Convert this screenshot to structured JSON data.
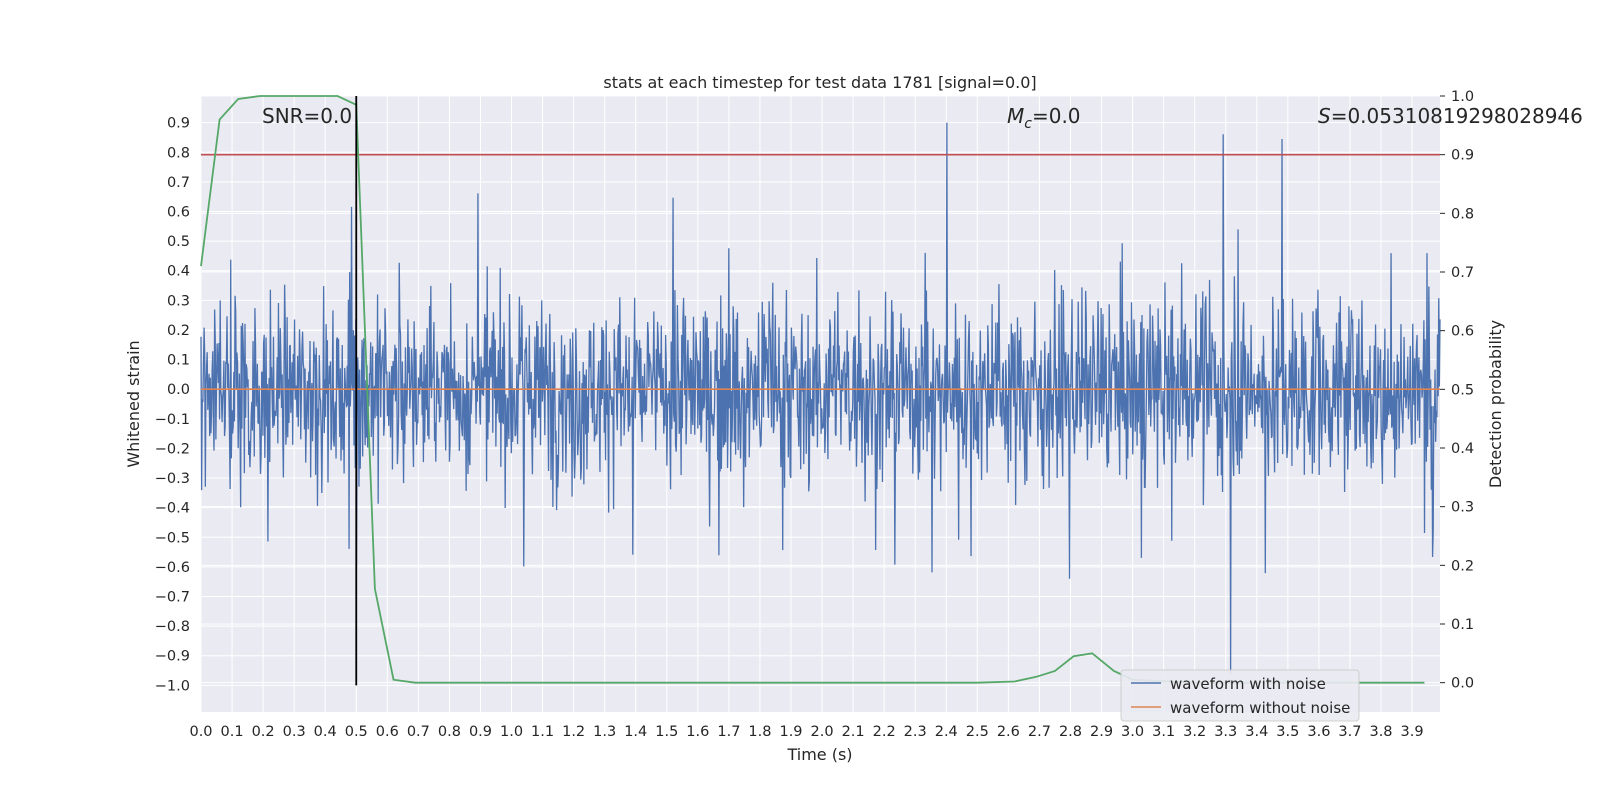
{
  "chart_data": {
    "type": "line",
    "title": "stats at each timestep for test data 1781 [signal=0.0]",
    "xlabel": "Time (s)",
    "ylabel": "Whitened strain",
    "y2label": "Detection probability",
    "xlim": [
      0.0,
      3.99
    ],
    "ylim": [
      -1.09,
      0.99
    ],
    "y2lim": [
      -0.05,
      1.0
    ],
    "x_ticks": [
      "0.0",
      "0.1",
      "0.2",
      "0.3",
      "0.4",
      "0.5",
      "0.6",
      "0.7",
      "0.8",
      "0.9",
      "1.0",
      "1.1",
      "1.2",
      "1.3",
      "1.4",
      "1.5",
      "1.6",
      "1.7",
      "1.8",
      "1.9",
      "2.0",
      "2.1",
      "2.2",
      "2.3",
      "2.4",
      "2.5",
      "2.6",
      "2.7",
      "2.8",
      "2.9",
      "3.0",
      "3.1",
      "3.2",
      "3.3",
      "3.4",
      "3.5",
      "3.6",
      "3.7",
      "3.8",
      "3.9"
    ],
    "y_ticks": [
      "0.9",
      "0.8",
      "0.7",
      "0.6",
      "0.5",
      "0.4",
      "0.3",
      "0.2",
      "0.1",
      "0.0",
      "−0.1",
      "−0.2",
      "−0.3",
      "−0.4",
      "−0.5",
      "−0.6",
      "−0.7",
      "−0.8",
      "−0.9",
      "−1.0"
    ],
    "y2_ticks": [
      "1.0",
      "0.9",
      "0.8",
      "0.7",
      "0.6",
      "0.5",
      "0.4",
      "0.3",
      "0.2",
      "0.1",
      "0.0"
    ],
    "annotations": {
      "snr": "SNR=0.0",
      "mc_symbol": "M",
      "mc_sub": "c",
      "mc_value": "=0.0",
      "s_symbol": "S",
      "s_value": "=0.05310819298028946"
    },
    "threshold_y2": 0.9,
    "marker_time": 0.5,
    "series": [
      {
        "name": "waveform with noise",
        "color": "#4c72b0",
        "note": "dense noise, amplitude mostly within -0.6..0.6 with spikes to ~0.9 and -1.0"
      },
      {
        "name": "waveform without noise",
        "color": "#dd8452",
        "values_x": [
          0.0,
          3.99
        ],
        "values_y": [
          0.0,
          0.0
        ]
      },
      {
        "name": "detection probability",
        "color": "#55a868",
        "axis": "y2",
        "x": [
          0.0,
          0.06,
          0.12,
          0.19,
          0.25,
          0.31,
          0.37,
          0.44,
          0.5,
          0.56,
          0.62,
          0.69,
          1.0,
          2.0,
          2.5,
          2.62,
          2.69,
          2.75,
          2.81,
          2.87,
          2.94,
          3.0,
          3.2,
          3.5,
          3.94
        ],
        "y": [
          0.71,
          0.96,
          0.995,
          1.0,
          1.0,
          1.0,
          1.0,
          1.0,
          0.985,
          0.16,
          0.005,
          0.0,
          0.0,
          0.0,
          0.0,
          0.002,
          0.01,
          0.02,
          0.045,
          0.05,
          0.02,
          0.005,
          0.0,
          0.0,
          0.0
        ]
      }
    ],
    "legend": {
      "position": "lower-right",
      "entries": [
        "waveform with noise",
        "waveform without noise"
      ]
    }
  }
}
